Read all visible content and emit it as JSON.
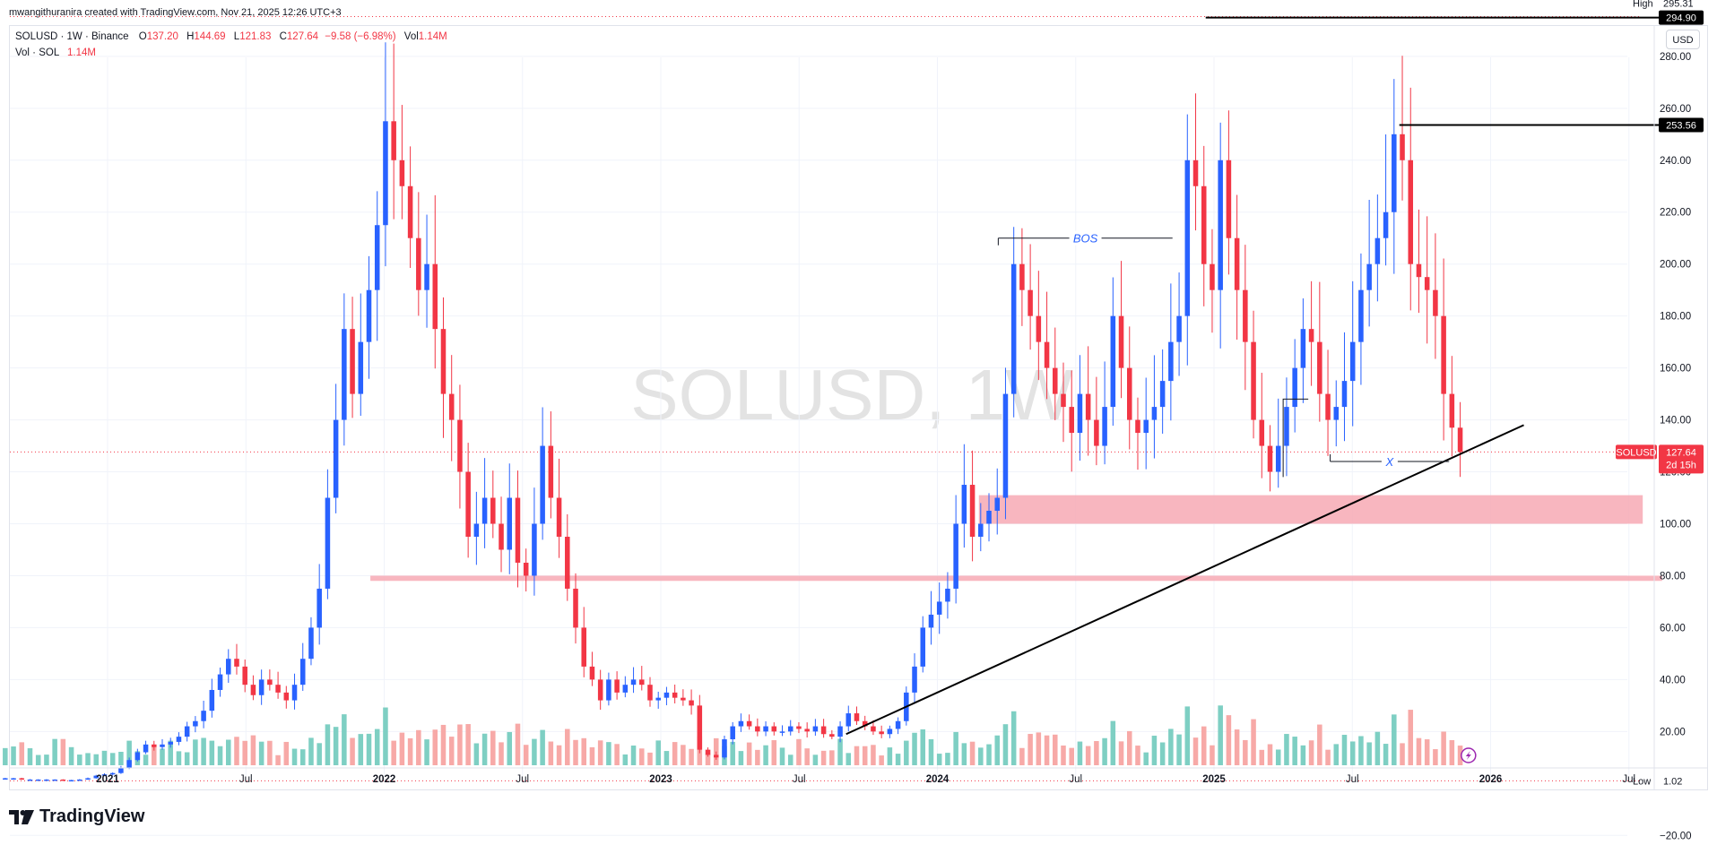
{
  "header": {
    "credit": "mwangithuranira created with TradingView.com, Nov 21, 2025 12:26 UTC+3"
  },
  "legend": {
    "symbol": "SOLUSD · 1W · Binance",
    "o_label": "O",
    "o_value": "137.20",
    "h_label": "H",
    "h_value": "144.69",
    "l_label": "L",
    "l_value": "121.83",
    "c_label": "C",
    "c_value": "127.64",
    "change": "−9.58 (−6.98%)",
    "vol_label": "Vol",
    "vol_value": "1.14M",
    "vol_sol_label": "Vol · SOL",
    "vol_sol_value": "1.14M"
  },
  "toolbar": {
    "currency": "USD"
  },
  "watermark": "SOLUSD, 1W",
  "footer": {
    "brand": "TradingView"
  },
  "price_scale": {
    "high_label": "High",
    "high_value": "295.31",
    "low_label": "Low",
    "low_value": "1.02",
    "marker_294": "294.90",
    "marker_253": "253.56",
    "symbol_tag": "SOLUSD",
    "last_price": "127.64",
    "countdown": "2d 15h"
  },
  "annotations": {
    "bos": "BOS",
    "x": "X"
  },
  "colors": {
    "up": "#2962ff",
    "down": "#f23645",
    "vol_up": "#7ecfc3",
    "vol_down": "#f7a9a7",
    "zone": "#f7a9b4",
    "trendline": "#000000"
  },
  "chart_data": {
    "type": "candlestick",
    "symbol": "SOLUSD",
    "interval": "1W",
    "ylim": [
      -24,
      302
    ],
    "y_ticks": [
      "−20.00",
      "20.00",
      "40.00",
      "60.00",
      "80.00",
      "100.00",
      "120.00",
      "140.00",
      "160.00",
      "180.00",
      "200.00",
      "220.00",
      "240.00",
      "260.00",
      "280.00"
    ],
    "y_tick_values": [
      -20,
      20,
      40,
      60,
      80,
      100,
      120,
      140,
      160,
      180,
      200,
      220,
      240,
      260,
      280
    ],
    "x_ticks": [
      {
        "label": "2021",
        "year": 2021.0,
        "bold": true
      },
      {
        "label": "Jul",
        "year": 2021.5,
        "bold": false
      },
      {
        "label": "2022",
        "year": 2022.0,
        "bold": true
      },
      {
        "label": "Jul",
        "year": 2022.5,
        "bold": false
      },
      {
        "label": "2023",
        "year": 2023.0,
        "bold": true
      },
      {
        "label": "Jul",
        "year": 2023.5,
        "bold": false
      },
      {
        "label": "2024",
        "year": 2024.0,
        "bold": true
      },
      {
        "label": "Jul",
        "year": 2024.5,
        "bold": false
      },
      {
        "label": "2025",
        "year": 2025.0,
        "bold": true
      },
      {
        "label": "Jul",
        "year": 2025.5,
        "bold": false
      },
      {
        "label": "2026",
        "year": 2026.0,
        "bold": true
      },
      {
        "label": "Jul",
        "year": 2026.5,
        "bold": false
      }
    ],
    "weekly_close": [
      2,
      2,
      2,
      1.5,
      1.5,
      1.5,
      1.5,
      1.5,
      1.2,
      1.3,
      1.5,
      2,
      3,
      3.5,
      4,
      6,
      9,
      12,
      15,
      14,
      15,
      16,
      18,
      22,
      24,
      28,
      36,
      42,
      48,
      45,
      38,
      34,
      40,
      38,
      35,
      32,
      38,
      48,
      60,
      75,
      110,
      140,
      175,
      150,
      170,
      190,
      215,
      255,
      240,
      230,
      210,
      190,
      200,
      175,
      150,
      140,
      120,
      95,
      100,
      110,
      100,
      90,
      110,
      85,
      80,
      100,
      130,
      110,
      95,
      75,
      60,
      45,
      40,
      32,
      40,
      35,
      38,
      40,
      38,
      32,
      33,
      35,
      33,
      32,
      30,
      13,
      11,
      10,
      17,
      22,
      24,
      22,
      20,
      22,
      20,
      20,
      22,
      21,
      20,
      22,
      19,
      18,
      22,
      27,
      24,
      22,
      20,
      19,
      21,
      24,
      35,
      45,
      60,
      65,
      70,
      75,
      100,
      115,
      95,
      100,
      105,
      110,
      150,
      200,
      190,
      180,
      170,
      160,
      150,
      145,
      135,
      150,
      140,
      130,
      145,
      180,
      160,
      140,
      135,
      140,
      145,
      155,
      170,
      180,
      240,
      230,
      200,
      190,
      240,
      210,
      190,
      170,
      140,
      130,
      120,
      130,
      145,
      160,
      175,
      170,
      150,
      140,
      145,
      155,
      170,
      190,
      200,
      210,
      220,
      250,
      240,
      200,
      195,
      190,
      180,
      150,
      137,
      127.64
    ],
    "trendline": {
      "start_year": 2023.67,
      "start_value": 19,
      "end_year": 2026.12,
      "end_value": 138
    },
    "support_zone_upper": {
      "from_year": 2024.15,
      "to_year": 2026.55,
      "low": 100,
      "high": 111
    },
    "support_zone_lower": {
      "from_year": 2021.95,
      "to_year": 2026.62,
      "low": 78,
      "high": 80
    },
    "resistance_294": {
      "from_year": 2024.97,
      "to_year": 2026.72,
      "value": 294.9
    },
    "resistance_253": {
      "from_year": 2025.67,
      "to_year": 2026.72,
      "value": 253.56
    },
    "bos_level": {
      "from_year": 2024.22,
      "to_year": 2024.85,
      "value": 210
    },
    "x_level": {
      "from_year": 2025.42,
      "to_year": 2025.85,
      "value": 124
    },
    "last_price": 127.64
  }
}
